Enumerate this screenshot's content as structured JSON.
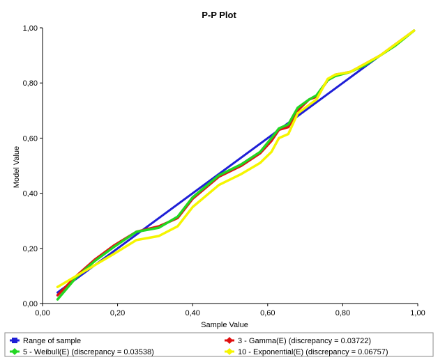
{
  "chart_data": {
    "type": "line",
    "title": "P-P Plot",
    "xlabel": "Sample Value",
    "ylabel": "Model Value",
    "xlim": [
      0,
      1
    ],
    "ylim": [
      0,
      1
    ],
    "xticks": [
      "0,00",
      "0,20",
      "0,40",
      "0,60",
      "0,80",
      "1,00"
    ],
    "yticks": [
      "0,00",
      "0,20",
      "0,40",
      "0,60",
      "0,80",
      "1,00"
    ],
    "grid": false,
    "legend_position": "bottom",
    "series": [
      {
        "name": "Range of sample",
        "color": "#1f1fd6",
        "x": [
          0.04,
          0.99
        ],
        "y": [
          0.04,
          0.99
        ]
      },
      {
        "name": "3 - Gamma(E) (discrepancy = 0.03722)",
        "color": "#e01010",
        "x": [
          0.04,
          0.09,
          0.14,
          0.19,
          0.25,
          0.31,
          0.36,
          0.4,
          0.47,
          0.53,
          0.58,
          0.61,
          0.63,
          0.655,
          0.68,
          0.71,
          0.73,
          0.76,
          0.78,
          0.82,
          0.86,
          0.9,
          0.94,
          0.99
        ],
        "y": [
          0.03,
          0.1,
          0.16,
          0.21,
          0.26,
          0.28,
          0.31,
          0.38,
          0.46,
          0.5,
          0.545,
          0.59,
          0.63,
          0.64,
          0.7,
          0.74,
          0.75,
          0.81,
          0.83,
          0.84,
          0.87,
          0.9,
          0.94,
          0.99
        ]
      },
      {
        "name": "5 - Weibull(E) (discrepancy = 0.03538)",
        "color": "#22d622",
        "x": [
          0.04,
          0.09,
          0.14,
          0.19,
          0.25,
          0.31,
          0.36,
          0.4,
          0.47,
          0.53,
          0.58,
          0.61,
          0.63,
          0.655,
          0.68,
          0.71,
          0.73,
          0.76,
          0.78,
          0.82,
          0.86,
          0.9,
          0.94,
          0.99
        ],
        "y": [
          0.015,
          0.095,
          0.155,
          0.205,
          0.26,
          0.275,
          0.315,
          0.385,
          0.465,
          0.505,
          0.55,
          0.6,
          0.635,
          0.65,
          0.71,
          0.74,
          0.755,
          0.81,
          0.825,
          0.84,
          0.865,
          0.9,
          0.935,
          0.99
        ]
      },
      {
        "name": "10 - Exponential(E) (discrepancy = 0.06757)",
        "color": "#f5f500",
        "x": [
          0.04,
          0.09,
          0.14,
          0.19,
          0.25,
          0.31,
          0.36,
          0.4,
          0.47,
          0.53,
          0.58,
          0.61,
          0.63,
          0.655,
          0.68,
          0.71,
          0.73,
          0.76,
          0.78,
          0.82,
          0.86,
          0.9,
          0.94,
          0.99
        ],
        "y": [
          0.06,
          0.1,
          0.14,
          0.18,
          0.23,
          0.245,
          0.28,
          0.35,
          0.43,
          0.47,
          0.51,
          0.55,
          0.6,
          0.615,
          0.69,
          0.72,
          0.74,
          0.815,
          0.83,
          0.84,
          0.87,
          0.9,
          0.94,
          0.99
        ]
      }
    ]
  },
  "legend": {
    "items": [
      {
        "label": "Range of sample",
        "color": "#1f1fd6"
      },
      {
        "label": "3 - Gamma(E) (discrepancy = 0.03722)",
        "color": "#e01010"
      },
      {
        "label": "5 - Weibull(E) (discrepancy = 0.03538)",
        "color": "#22d622"
      },
      {
        "label": "10 - Exponential(E) (discrepancy = 0.06757)",
        "color": "#f5f500"
      }
    ]
  }
}
